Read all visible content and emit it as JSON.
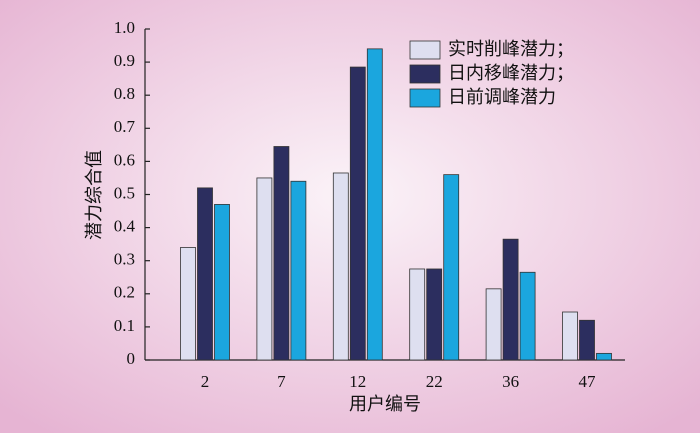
{
  "chart_data": {
    "type": "bar",
    "xlabel": "用户编号",
    "ylabel": "潜力综合值",
    "categories": [
      "2",
      "7",
      "12",
      "22",
      "36",
      "47"
    ],
    "series": [
      {
        "name": "实时削峰潜力；",
        "color": "#dedff0",
        "values": [
          0.34,
          0.55,
          0.565,
          0.275,
          0.215,
          0.145
        ]
      },
      {
        "name": "日内移峰潜力；",
        "color": "#2c2e5f",
        "values": [
          0.52,
          0.645,
          0.885,
          0.275,
          0.365,
          0.12
        ]
      },
      {
        "name": "日前调峰潜力",
        "color": "#1ba6de",
        "values": [
          0.47,
          0.54,
          0.94,
          0.56,
          0.265,
          0.02
        ]
      }
    ],
    "ylim": [
      0,
      1
    ],
    "yticks": [
      0,
      0.1,
      0.2,
      0.3,
      0.4,
      0.5,
      0.6,
      0.7,
      0.8,
      0.9,
      {
        "value": 1,
        "label": "1.0"
      }
    ],
    "legend": "upper-right"
  }
}
